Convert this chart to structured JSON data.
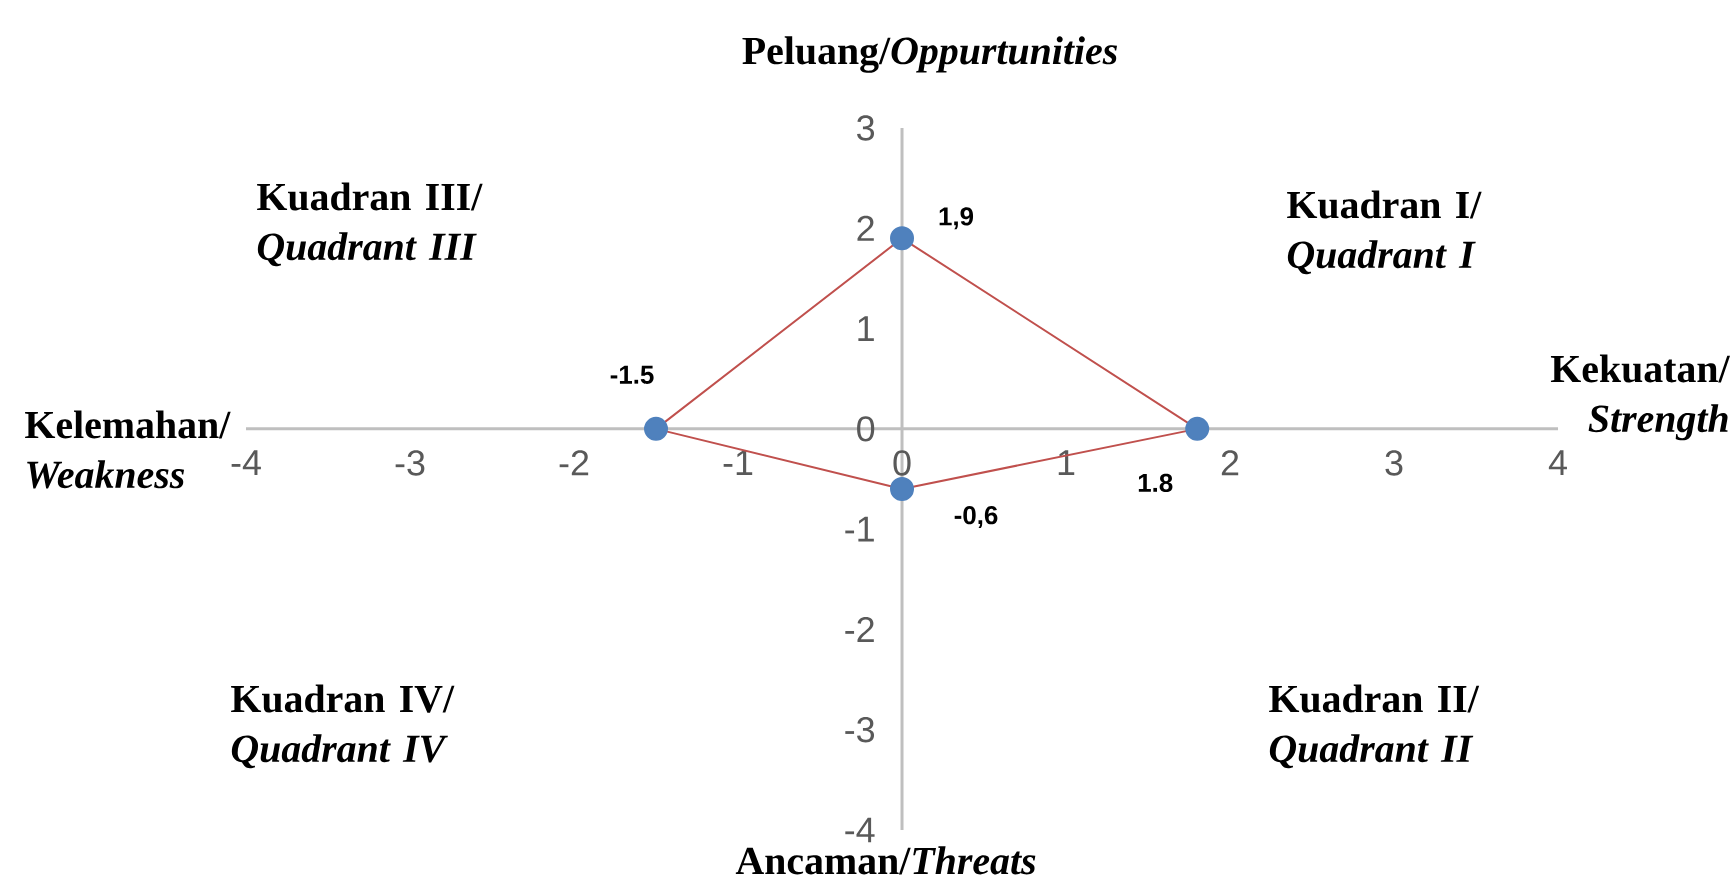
{
  "chart_data": {
    "type": "scatter",
    "annotations": [
      "Peluang/*Oppurtunities*",
      "Ancaman/*Threats*",
      "Kelemahan/ *Weakness*",
      "Kekuatan/ *Strength*",
      "Kuadran I/ *Quadrant I*",
      "Kuadran II/ *Quadrant II*",
      "Kuadran III/ *Quadrant III*",
      "Kuadran IV/ *Quadrant IV*",
      {
        "text": "-1.5",
        "x": -1.5,
        "y": 0
      },
      {
        "text": "1,9",
        "x": 0,
        "y": 1.9
      },
      {
        "text": "1.8",
        "x": 1.8,
        "y": 0
      },
      {
        "text": "-0,6",
        "x": 0,
        "y": -0.6
      }
    ],
    "xlim": [
      -4,
      4
    ],
    "ylim": [
      -4,
      3
    ],
    "xticks": [
      -4,
      -3,
      -2,
      -1,
      0,
      1,
      2,
      3,
      4
    ],
    "yticks": [
      -4,
      -3,
      -2,
      -1,
      0,
      1,
      2,
      3
    ],
    "series": [
      {
        "color": "#4f81bd",
        "marker": "circle",
        "x": [
          -1.5,
          0,
          1.8,
          0
        ],
        "values": [
          0,
          1.9,
          0,
          -0.6
        ]
      },
      {
        "type": "line",
        "color": "#c0504d",
        "marker": "none",
        "x": [
          -1.5,
          0,
          1.8
        ],
        "values": [
          0,
          1.9,
          0
        ]
      },
      {
        "type": "line",
        "color": "#c0504d",
        "marker": "none",
        "x": [
          -1.5,
          0,
          1.8
        ],
        "values": [
          0,
          -0.6,
          0
        ]
      }
    ]
  }
}
